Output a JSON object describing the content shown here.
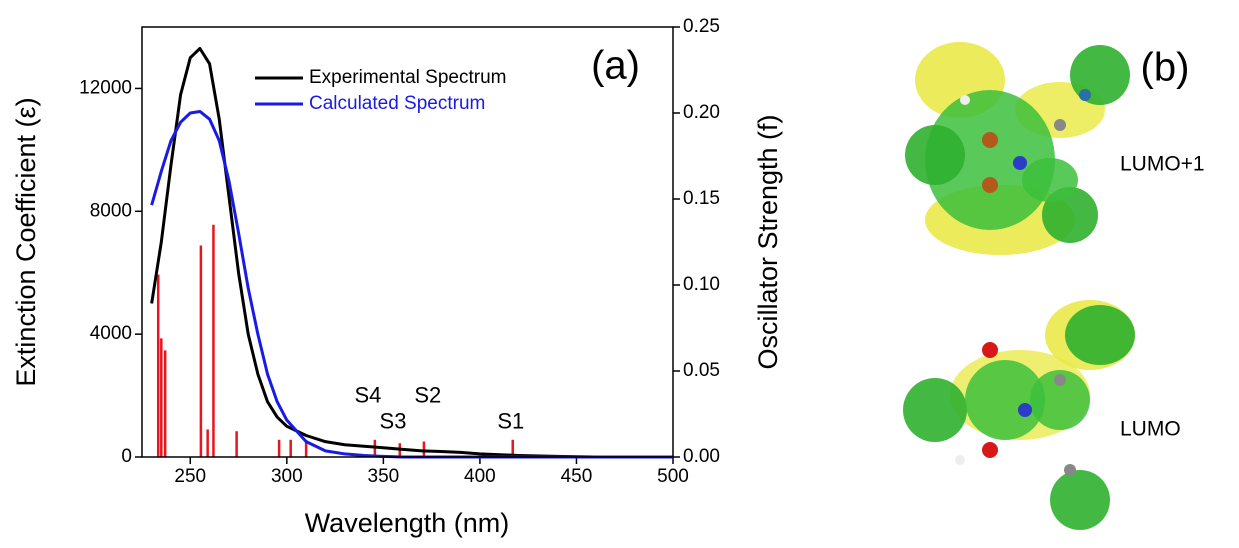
{
  "chart_data": {
    "type": "line",
    "panel_label": "(a)",
    "xlabel": "Wavelength (nm)",
    "ylabel": "Extinction Coefficient (ε)",
    "y2label": "Oscillator Strength (f)",
    "xlim": [
      225,
      500
    ],
    "xticks": [
      250,
      300,
      350,
      400,
      450,
      500
    ],
    "ylim": [
      0,
      14000
    ],
    "yticks": [
      0,
      4000,
      8000,
      12000
    ],
    "y2lim": [
      0,
      0.25
    ],
    "y2ticks": [
      {
        "value": 0,
        "label": "0.00"
      },
      0.05,
      {
        "value": 0.1,
        "label": "0.10"
      },
      0.15,
      {
        "value": 0.2,
        "label": "0.20"
      },
      0.25
    ],
    "x": [
      230,
      235,
      240,
      245,
      250,
      255,
      260,
      265,
      270,
      275,
      280,
      285,
      290,
      295,
      300,
      310,
      320,
      330,
      340,
      350,
      360,
      370,
      380,
      390,
      400,
      420,
      440,
      460,
      480,
      500
    ],
    "series": [
      {
        "name": "Experimental Spectrum",
        "color": "#000000",
        "values": [
          5000,
          7000,
          9500,
          11800,
          13000,
          13300,
          12800,
          11000,
          8500,
          6000,
          4000,
          2700,
          1800,
          1300,
          1000,
          700,
          500,
          400,
          350,
          300,
          250,
          200,
          180,
          150,
          100,
          50,
          20,
          0,
          0,
          0
        ]
      },
      {
        "name": "Calculated Spectrum",
        "color": "#1a1ae6",
        "values": [
          8200,
          9300,
          10300,
          10900,
          11200,
          11250,
          11000,
          10300,
          9000,
          7300,
          5500,
          4000,
          2700,
          1800,
          1200,
          500,
          200,
          100,
          50,
          20,
          0,
          0,
          0,
          0,
          0,
          0,
          0,
          0,
          0,
          0
        ]
      }
    ],
    "sticks": {
      "color": "#e8141e",
      "axis": "y2",
      "x": [
        233.4,
        235,
        237,
        255.5,
        259,
        262,
        274,
        296,
        302,
        310,
        345.6,
        358.5,
        371,
        417
      ],
      "values": [
        0.106,
        0.069,
        0.062,
        0.123,
        0.016,
        0.135,
        0.015,
        0.01,
        0.01,
        0.01,
        0.01,
        0.008,
        0.009,
        0.01
      ]
    },
    "annotations": [
      {
        "text": "S4",
        "x": 342,
        "y": 0.035
      },
      {
        "text": "S3",
        "x": 355,
        "y": 0.02
      },
      {
        "text": "S2",
        "x": 373,
        "y": 0.035
      },
      {
        "text": "S1",
        "x": 416,
        "y": 0.02
      }
    ]
  },
  "panel_b": {
    "label": "(b)",
    "orbitals": [
      "LUMO+1",
      "LUMO"
    ]
  }
}
